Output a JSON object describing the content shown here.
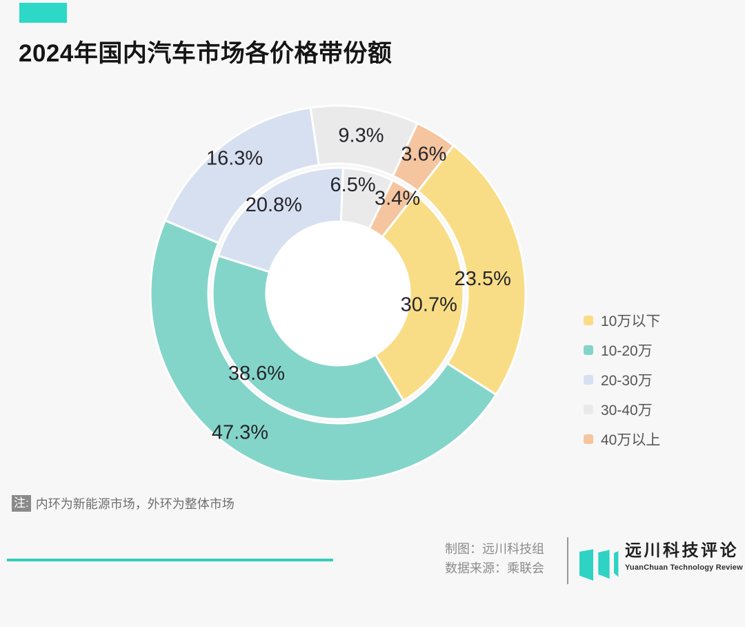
{
  "page": {
    "background": "#F7F7F7",
    "accent_color": "#2ED8C6"
  },
  "header": {
    "title": "2024年国内汽车市场各价格带份额"
  },
  "chart_data": {
    "type": "pie",
    "subtype": "nested-donut",
    "title": "2024年国内汽车市场各价格带份额",
    "unit": "%",
    "categories": [
      "10万以下",
      "10-20万",
      "20-30万",
      "30-40万",
      "40万以上"
    ],
    "colors": [
      "#F9DD86",
      "#84D5C9",
      "#D7E0F0",
      "#EAEAEA",
      "#F5C5A0"
    ],
    "series": [
      {
        "name": "整体市场",
        "ring": "outer",
        "values": [
          23.5,
          47.3,
          16.3,
          9.3,
          3.6
        ]
      },
      {
        "name": "新能源市场",
        "ring": "inner",
        "values": [
          30.7,
          38.6,
          20.8,
          6.5,
          3.4
        ]
      }
    ],
    "legend": {
      "position": "right-center",
      "labels": [
        "10万以下",
        "10-20万",
        "20-30万",
        "30-40万",
        "40万以上"
      ]
    },
    "layout": {
      "svg_size": 548,
      "center": [
        274,
        274
      ],
      "start_angle_deg_cw_from_top": 38,
      "direction": "clockwise",
      "border_color": "#FFFFFF",
      "border_width": 3,
      "hole_radius": 103,
      "hole_color": "#FFFFFF",
      "label_color": "#26262C",
      "label_font_size": 29,
      "rings": {
        "outer": {
          "r_inner": 188,
          "r_outer": 272,
          "label_radius": [
            225,
            230,
            230,
            232,
            238
          ],
          "label_nudges": [
            [
              -12,
              16
            ],
            [
              -35,
              -3
            ],
            [
              -9,
              -15
            ],
            [
              0,
              0
            ],
            [
              0,
              0
            ]
          ]
        },
        "inner": {
          "r_inner": 104,
          "r_outer": 182,
          "label_radius": [
            143,
            143,
            143,
            163,
            163
          ],
          "label_nudges": [
            [
              -11,
              7
            ],
            [
              -30,
              2
            ],
            [
              -11,
              -12
            ],
            [
              -18,
              0
            ],
            [
              0,
              0
            ]
          ]
        }
      }
    }
  },
  "note": {
    "badge": "注:",
    "text": "内环为新能源市场，外环为整体市场"
  },
  "footer": {
    "credit_line1": "制图：远川科技组",
    "credit_line2": "数据来源：乘联会",
    "brand_name": "远川科技评论",
    "brand_subtitle": "YuanChuan Technology Review",
    "brand_color": "#2ED3C4"
  }
}
